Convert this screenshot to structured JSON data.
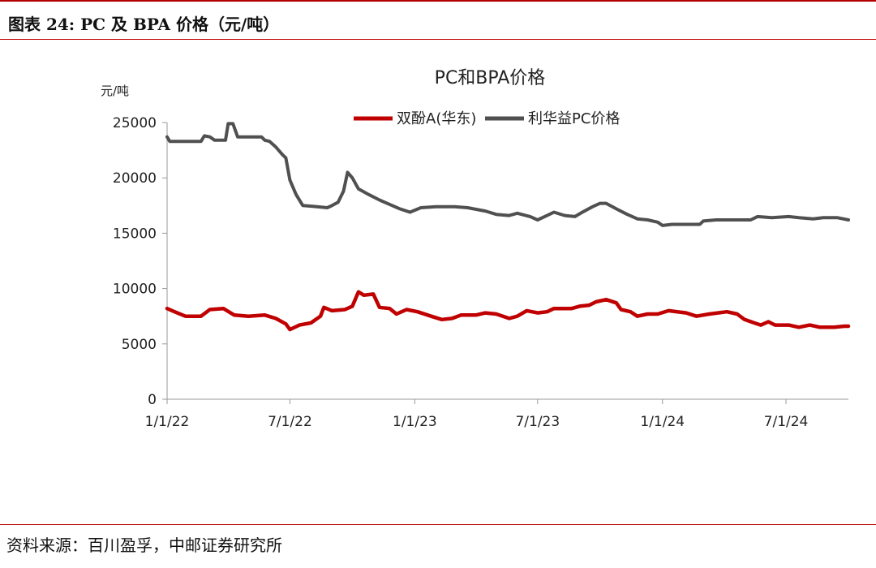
{
  "figure_title": "图表 24: PC 及 BPA 价格（元/吨）",
  "source_note": "资料来源：百川盈孚，中邮证券研究所",
  "chart_data": {
    "type": "line",
    "title": "PC和BPA价格",
    "ylabel": "元/吨",
    "xlabel": "",
    "ylim": [
      0,
      25000
    ],
    "yticks": [
      0,
      5000,
      10000,
      15000,
      20000,
      25000
    ],
    "xlim": [
      "2022-01-01",
      "2024-10-01"
    ],
    "xticks": [
      {
        "date": "2022-01-01",
        "label": "1/1/22"
      },
      {
        "date": "2022-07-01",
        "label": "7/1/22"
      },
      {
        "date": "2023-01-01",
        "label": "1/1/23"
      },
      {
        "date": "2023-07-01",
        "label": "7/1/23"
      },
      {
        "date": "2024-01-01",
        "label": "1/1/24"
      },
      {
        "date": "2024-07-01",
        "label": "7/1/24"
      }
    ],
    "grid": false,
    "legend_position": "top-center",
    "series": [
      {
        "name": "双酚A(华东)",
        "color": "#c00000",
        "points": [
          [
            "2022-01-01",
            8200
          ],
          [
            "2022-01-12",
            7900
          ],
          [
            "2022-01-28",
            7500
          ],
          [
            "2022-02-20",
            7500
          ],
          [
            "2022-03-05",
            8100
          ],
          [
            "2022-03-25",
            8200
          ],
          [
            "2022-04-10",
            7600
          ],
          [
            "2022-05-01",
            7500
          ],
          [
            "2022-05-25",
            7600
          ],
          [
            "2022-06-10",
            7300
          ],
          [
            "2022-06-25",
            6800
          ],
          [
            "2022-07-01",
            6300
          ],
          [
            "2022-07-15",
            6700
          ],
          [
            "2022-08-01",
            6900
          ],
          [
            "2022-08-15",
            7500
          ],
          [
            "2022-08-20",
            8300
          ],
          [
            "2022-09-01",
            8000
          ],
          [
            "2022-09-20",
            8100
          ],
          [
            "2022-10-01",
            8400
          ],
          [
            "2022-10-10",
            9700
          ],
          [
            "2022-10-18",
            9400
          ],
          [
            "2022-11-01",
            9500
          ],
          [
            "2022-11-10",
            8300
          ],
          [
            "2022-11-25",
            8200
          ],
          [
            "2022-12-05",
            7700
          ],
          [
            "2022-12-20",
            8100
          ],
          [
            "2023-01-05",
            7900
          ],
          [
            "2023-01-25",
            7500
          ],
          [
            "2023-02-10",
            7200
          ],
          [
            "2023-02-25",
            7300
          ],
          [
            "2023-03-10",
            7600
          ],
          [
            "2023-04-01",
            7600
          ],
          [
            "2023-04-15",
            7800
          ],
          [
            "2023-05-01",
            7700
          ],
          [
            "2023-05-20",
            7300
          ],
          [
            "2023-06-01",
            7500
          ],
          [
            "2023-06-15",
            8000
          ],
          [
            "2023-07-01",
            7800
          ],
          [
            "2023-07-15",
            7900
          ],
          [
            "2023-07-25",
            8200
          ],
          [
            "2023-08-20",
            8200
          ],
          [
            "2023-09-01",
            8400
          ],
          [
            "2023-09-15",
            8500
          ],
          [
            "2023-09-25",
            8800
          ],
          [
            "2023-10-10",
            9000
          ],
          [
            "2023-10-25",
            8700
          ],
          [
            "2023-11-01",
            8100
          ],
          [
            "2023-11-15",
            7900
          ],
          [
            "2023-11-25",
            7500
          ],
          [
            "2023-12-10",
            7700
          ],
          [
            "2023-12-25",
            7700
          ],
          [
            "2024-01-10",
            8000
          ],
          [
            "2024-02-05",
            7800
          ],
          [
            "2024-02-20",
            7500
          ],
          [
            "2024-03-10",
            7700
          ],
          [
            "2024-04-05",
            7900
          ],
          [
            "2024-04-20",
            7700
          ],
          [
            "2024-05-01",
            7200
          ],
          [
            "2024-05-15",
            6900
          ],
          [
            "2024-05-25",
            6700
          ],
          [
            "2024-06-05",
            7000
          ],
          [
            "2024-06-15",
            6700
          ],
          [
            "2024-07-05",
            6700
          ],
          [
            "2024-07-20",
            6500
          ],
          [
            "2024-08-05",
            6700
          ],
          [
            "2024-08-20",
            6500
          ],
          [
            "2024-09-10",
            6500
          ],
          [
            "2024-09-25",
            6600
          ],
          [
            "2024-10-01",
            6600
          ]
        ]
      },
      {
        "name": "利华益PC价格",
        "color": "#505050",
        "points": [
          [
            "2022-01-01",
            23700
          ],
          [
            "2022-01-05",
            23300
          ],
          [
            "2022-02-20",
            23300
          ],
          [
            "2022-02-25",
            23800
          ],
          [
            "2022-03-05",
            23700
          ],
          [
            "2022-03-12",
            23400
          ],
          [
            "2022-03-28",
            23400
          ],
          [
            "2022-04-01",
            24900
          ],
          [
            "2022-04-08",
            24900
          ],
          [
            "2022-04-15",
            23700
          ],
          [
            "2022-05-20",
            23700
          ],
          [
            "2022-05-25",
            23400
          ],
          [
            "2022-06-01",
            23300
          ],
          [
            "2022-06-10",
            22800
          ],
          [
            "2022-06-20",
            22100
          ],
          [
            "2022-06-25",
            21800
          ],
          [
            "2022-07-01",
            19800
          ],
          [
            "2022-07-10",
            18500
          ],
          [
            "2022-07-20",
            17500
          ],
          [
            "2022-08-10",
            17400
          ],
          [
            "2022-08-25",
            17300
          ],
          [
            "2022-09-01",
            17500
          ],
          [
            "2022-09-10",
            17800
          ],
          [
            "2022-09-18",
            18800
          ],
          [
            "2022-09-24",
            20500
          ],
          [
            "2022-10-01",
            20000
          ],
          [
            "2022-10-10",
            19000
          ],
          [
            "2022-10-25",
            18500
          ],
          [
            "2022-11-10",
            18000
          ],
          [
            "2022-11-25",
            17600
          ],
          [
            "2022-12-10",
            17200
          ],
          [
            "2022-12-25",
            16900
          ],
          [
            "2023-01-10",
            17300
          ],
          [
            "2023-02-01",
            17400
          ],
          [
            "2023-03-01",
            17400
          ],
          [
            "2023-03-20",
            17300
          ],
          [
            "2023-04-15",
            17000
          ],
          [
            "2023-05-01",
            16700
          ],
          [
            "2023-05-20",
            16600
          ],
          [
            "2023-06-01",
            16800
          ],
          [
            "2023-06-20",
            16500
          ],
          [
            "2023-07-01",
            16200
          ],
          [
            "2023-07-15",
            16600
          ],
          [
            "2023-07-25",
            16900
          ],
          [
            "2023-08-10",
            16600
          ],
          [
            "2023-08-25",
            16500
          ],
          [
            "2023-09-05",
            16900
          ],
          [
            "2023-09-20",
            17400
          ],
          [
            "2023-10-01",
            17700
          ],
          [
            "2023-10-10",
            17700
          ],
          [
            "2023-10-25",
            17200
          ],
          [
            "2023-11-10",
            16700
          ],
          [
            "2023-11-25",
            16300
          ],
          [
            "2023-12-10",
            16200
          ],
          [
            "2023-12-25",
            16000
          ],
          [
            "2024-01-01",
            15700
          ],
          [
            "2024-01-15",
            15800
          ],
          [
            "2024-02-10",
            15800
          ],
          [
            "2024-02-25",
            15800
          ],
          [
            "2024-03-01",
            16100
          ],
          [
            "2024-03-20",
            16200
          ],
          [
            "2024-04-15",
            16200
          ],
          [
            "2024-05-10",
            16200
          ],
          [
            "2024-05-20",
            16500
          ],
          [
            "2024-06-10",
            16400
          ],
          [
            "2024-07-05",
            16500
          ],
          [
            "2024-07-20",
            16400
          ],
          [
            "2024-08-10",
            16300
          ],
          [
            "2024-08-25",
            16400
          ],
          [
            "2024-09-15",
            16400
          ],
          [
            "2024-10-01",
            16200
          ]
        ]
      }
    ]
  }
}
